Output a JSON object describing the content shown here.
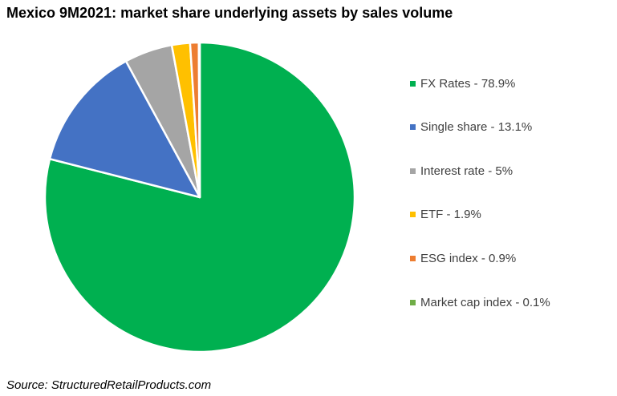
{
  "chart_data": {
    "type": "pie",
    "title": "Mexico 9M2021: market share underlying assets by sales volume",
    "slices": [
      {
        "label": "FX Rates - 78.9%",
        "value": 78.9,
        "color": "#00b050"
      },
      {
        "label": "Single share - 13.1%",
        "value": 13.1,
        "color": "#4472c4"
      },
      {
        "label": "Interest rate - 5%",
        "value": 5,
        "color": "#a5a5a5"
      },
      {
        "label": "ETF - 1.9%",
        "value": 1.9,
        "color": "#ffc000"
      },
      {
        "label": "ESG index - 0.9%",
        "value": 0.9,
        "color": "#ed7d31"
      },
      {
        "label": "Market cap index - 0.1%",
        "value": 0.1,
        "color": "#70ad47"
      }
    ],
    "legend_position": "right",
    "source": "Source: StructuredRetailProducts.com"
  }
}
